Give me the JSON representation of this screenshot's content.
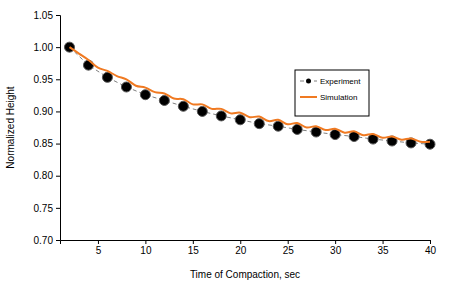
{
  "chart_data": {
    "type": "line",
    "x_label": "Time of Compaction, sec",
    "y_label": "Normalized Height",
    "xlim": [
      1,
      40
    ],
    "xticks": [
      5,
      10,
      15,
      20,
      25,
      30,
      35,
      40
    ],
    "ylim": [
      0.7,
      1.05
    ],
    "yticks": [
      {
        "value": 0.7,
        "label": "0.70"
      },
      {
        "value": 0.75,
        "label": "0.75"
      },
      {
        "value": 0.8,
        "label": "0.80"
      },
      {
        "value": 0.85,
        "label": "0.85"
      },
      {
        "value": 0.9,
        "label": "0.90"
      },
      {
        "value": 0.95,
        "label": "0.95"
      },
      {
        "value": 1.0,
        "label": "1.00"
      },
      {
        "value": 1.05,
        "label": "1.05"
      }
    ],
    "grid": false,
    "legend": "right",
    "series": [
      {
        "name": "Experiment",
        "color": "#000000",
        "marker": "circle",
        "line_style": "dashed",
        "x": [
          2,
          4,
          6,
          8,
          10,
          12,
          14,
          16,
          18,
          20,
          22,
          24,
          26,
          28,
          30,
          32,
          34,
          36,
          38,
          40
        ],
        "values": [
          1.0,
          0.972,
          0.953,
          0.938,
          0.926,
          0.917,
          0.908,
          0.9,
          0.893,
          0.887,
          0.881,
          0.877,
          0.872,
          0.868,
          0.864,
          0.861,
          0.857,
          0.854,
          0.851,
          0.849
        ]
      },
      {
        "name": "Simulation",
        "color": "#f07a22",
        "marker": "none",
        "line_style": "solid",
        "x": [
          2,
          3,
          4,
          5,
          6,
          7,
          8,
          9,
          10,
          11,
          12,
          13,
          14,
          15,
          16,
          17,
          18,
          19,
          20,
          21,
          22,
          23,
          24,
          25,
          26,
          27,
          28,
          29,
          30,
          31,
          32,
          33,
          34,
          35,
          36,
          37,
          38,
          39,
          40
        ],
        "values": [
          1.0,
          0.99,
          0.98,
          0.968,
          0.963,
          0.955,
          0.95,
          0.94,
          0.937,
          0.93,
          0.928,
          0.92,
          0.919,
          0.911,
          0.911,
          0.904,
          0.904,
          0.897,
          0.898,
          0.891,
          0.892,
          0.885,
          0.887,
          0.88,
          0.882,
          0.875,
          0.877,
          0.871,
          0.873,
          0.867,
          0.869,
          0.863,
          0.865,
          0.859,
          0.861,
          0.856,
          0.858,
          0.853,
          0.853
        ]
      }
    ]
  }
}
